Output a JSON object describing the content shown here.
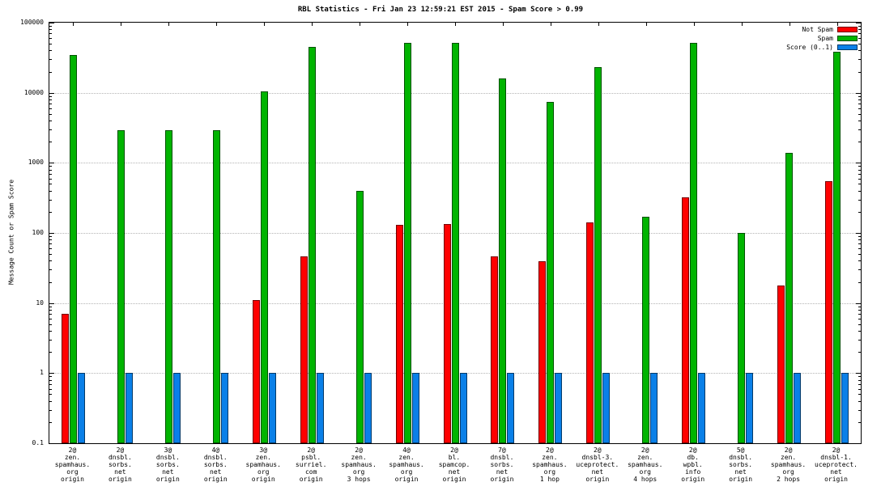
{
  "chart_data": {
    "type": "bar",
    "title": "RBL Statistics - Fri Jan 23 12:59:21 EST 2015 - Spam Score > 0.99",
    "ylabel": "Message Count or Spam Score",
    "xlabel": "",
    "scale": "log",
    "ylim": [
      0.1,
      100000
    ],
    "grid": "horizontal-dotted",
    "legend_position": "top-right-inside",
    "y_ticks": [
      "100000",
      "10000",
      "1000",
      "100",
      "10",
      "1",
      "0.1"
    ],
    "categories": [
      [
        "2@",
        "zen.",
        "spamhaus.",
        "org",
        "origin"
      ],
      [
        "2@",
        "dnsbl.",
        "sorbs.",
        "net",
        "origin"
      ],
      [
        "3@",
        "dnsbl.",
        "sorbs.",
        "net",
        "origin"
      ],
      [
        "4@",
        "dnsbl.",
        "sorbs.",
        "net",
        "origin"
      ],
      [
        "3@",
        "zen.",
        "spamhaus.",
        "org",
        "origin"
      ],
      [
        "2@",
        "psbl.",
        "surriel.",
        "com",
        "origin"
      ],
      [
        "2@",
        "zen.",
        "spamhaus.",
        "org",
        "3 hops"
      ],
      [
        "4@",
        "zen.",
        "spamhaus.",
        "org",
        "origin"
      ],
      [
        "2@",
        "bl.",
        "spamcop.",
        "net",
        "origin"
      ],
      [
        "7@",
        "dnsbl.",
        "sorbs.",
        "net",
        "origin"
      ],
      [
        "2@",
        "zen.",
        "spamhaus.",
        "org",
        "1 hop"
      ],
      [
        "2@",
        "dnsbl-3.",
        "uceprotect.",
        "net",
        "origin"
      ],
      [
        "2@",
        "zen.",
        "spamhaus.",
        "org",
        "4 hops"
      ],
      [
        "2@",
        "db.",
        "wpbl.",
        "info",
        "origin"
      ],
      [
        "5@",
        "dnsbl.",
        "sorbs.",
        "net",
        "origin"
      ],
      [
        "2@",
        "zen.",
        "spamhaus.",
        "org",
        "2 hops"
      ],
      [
        "2@",
        "dnsbl-1.",
        "uceprotect.",
        "net",
        "origin"
      ]
    ],
    "series": [
      {
        "name": "Not Spam",
        "color": "#ff0000",
        "values": [
          7,
          0,
          0,
          0,
          11,
          46,
          0,
          130,
          135,
          46,
          40,
          140,
          0,
          320,
          0,
          18,
          550
        ]
      },
      {
        "name": "Spam",
        "color": "#00b400",
        "values": [
          35000,
          2900,
          2900,
          2900,
          10400,
          45000,
          400,
          52000,
          52000,
          16000,
          7500,
          23000,
          170,
          52000,
          100,
          1400,
          38000
        ]
      },
      {
        "name": "Score (0..1)",
        "color": "#0a80e8",
        "values": [
          1,
          1,
          1,
          1,
          1,
          1,
          1,
          1,
          1,
          1,
          1,
          1,
          1,
          1,
          1,
          1,
          1
        ]
      }
    ]
  }
}
